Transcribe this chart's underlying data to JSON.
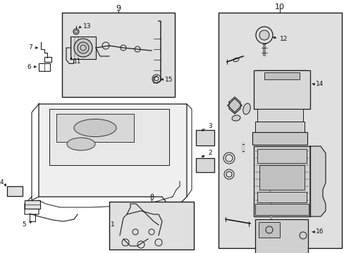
{
  "bg_color": "#ffffff",
  "fig_width": 4.89,
  "fig_height": 3.6,
  "dpi": 100,
  "image_b64": ""
}
